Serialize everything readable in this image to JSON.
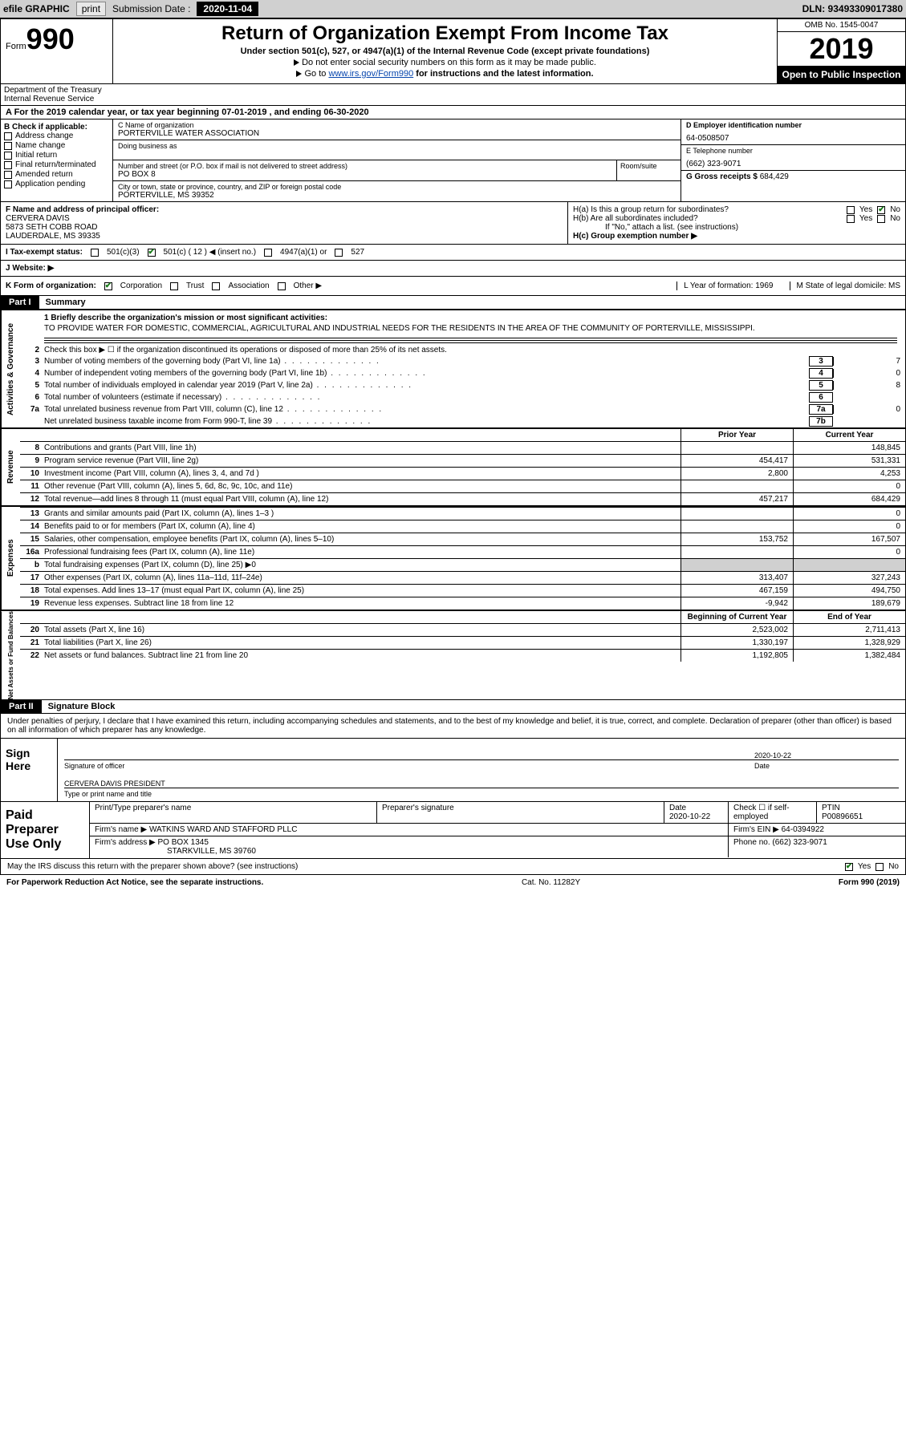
{
  "topbar": {
    "efile": "efile GRAPHIC",
    "print": "print",
    "sub_label": "Submission Date : ",
    "sub_date": "2020-11-04",
    "dln": "DLN: 93493309017380"
  },
  "header": {
    "form_word": "Form",
    "form_num": "990",
    "dept": "Department of the Treasury\nInternal Revenue Service",
    "title": "Return of Organization Exempt From Income Tax",
    "subtitle": "Under section 501(c), 527, or 4947(a)(1) of the Internal Revenue Code (except private foundations)",
    "line2": "Do not enter social security numbers on this form as it may be made public.",
    "line3_pre": "Go to ",
    "line3_link": "www.irs.gov/Form990",
    "line3_post": " for instructions and the latest information.",
    "omb": "OMB No. 1545-0047",
    "year": "2019",
    "open_public": "Open to Public Inspection"
  },
  "row_a": "A For the 2019 calendar year, or tax year beginning 07-01-2019    , and ending 06-30-2020",
  "col_b": {
    "label": "B Check if applicable:",
    "items": [
      "Address change",
      "Name change",
      "Initial return",
      "Final return/terminated",
      "Amended return",
      "Application pending"
    ]
  },
  "col_c": {
    "name_label": "C Name of organization",
    "name": "PORTERVILLE WATER ASSOCIATION",
    "dba_label": "Doing business as",
    "addr_label": "Number and street (or P.O. box if mail is not delivered to street address)",
    "addr": "PO BOX 8",
    "suite_label": "Room/suite",
    "city_label": "City or town, state or province, country, and ZIP or foreign postal code",
    "city": "PORTERVILLE, MS  39352"
  },
  "col_d": {
    "ein_label": "D Employer identification number",
    "ein": "64-0508507",
    "phone_label": "E Telephone number",
    "phone": "(662) 323-9071",
    "gross_label": "G Gross receipts $ ",
    "gross": "684,429"
  },
  "row_f": {
    "label": "F  Name and address of principal officer:",
    "name": "CERVERA DAVIS",
    "addr1": "5873 SETH COBB ROAD",
    "addr2": "LAUDERDALE, MS  39335"
  },
  "row_h": {
    "ha": "H(a)  Is this a group return for subordinates?",
    "hb": "H(b)  Are all subordinates included?",
    "hb_note": "If \"No,\" attach a list. (see instructions)",
    "hc": "H(c)  Group exemption number ▶"
  },
  "tax_exempt": {
    "label": "I  Tax-exempt status:",
    "opts": [
      "501(c)(3)",
      "501(c) ( 12 ) ◀ (insert no.)",
      "4947(a)(1) or",
      "527"
    ]
  },
  "j_label": "J  Website: ▶",
  "k": {
    "label": "K Form of organization:",
    "opts": [
      "Corporation",
      "Trust",
      "Association",
      "Other ▶"
    ],
    "l": "L Year of formation: 1969",
    "m": "M State of legal domicile: MS"
  },
  "part1": {
    "tag": "Part I",
    "title": "Summary",
    "line1_label": "1  Briefly describe the organization's mission or most significant activities:",
    "mission": "TO PROVIDE WATER FOR DOMESTIC, COMMERCIAL, AGRICULTURAL AND INDUSTRIAL NEEDS FOR THE RESIDENTS IN THE AREA OF THE COMMUNITY OF PORTERVILLE, MISSISSIPPI.",
    "line2": "Check this box ▶ ☐  if the organization discontinued its operations or disposed of more than 25% of its net assets.",
    "governance_label": "Activities & Governance",
    "revenue_label": "Revenue",
    "expenses_label": "Expenses",
    "netassets_label": "Net Assets or Fund Balances",
    "lines_num": [
      {
        "n": "3",
        "d": "Number of voting members of the governing body (Part VI, line 1a)",
        "box": "3",
        "v": "7"
      },
      {
        "n": "4",
        "d": "Number of independent voting members of the governing body (Part VI, line 1b)",
        "box": "4",
        "v": "0"
      },
      {
        "n": "5",
        "d": "Total number of individuals employed in calendar year 2019 (Part V, line 2a)",
        "box": "5",
        "v": "8"
      },
      {
        "n": "6",
        "d": "Total number of volunteers (estimate if necessary)",
        "box": "6",
        "v": ""
      },
      {
        "n": "7a",
        "d": "Total unrelated business revenue from Part VIII, column (C), line 12",
        "box": "7a",
        "v": "0"
      },
      {
        "n": "",
        "d": "Net unrelated business taxable income from Form 990-T, line 39",
        "box": "7b",
        "v": ""
      }
    ],
    "py_label": "Prior Year",
    "cy_label": "Current Year",
    "revenue_lines": [
      {
        "n": "8",
        "d": "Contributions and grants (Part VIII, line 1h)",
        "py": "",
        "cy": "148,845"
      },
      {
        "n": "9",
        "d": "Program service revenue (Part VIII, line 2g)",
        "py": "454,417",
        "cy": "531,331"
      },
      {
        "n": "10",
        "d": "Investment income (Part VIII, column (A), lines 3, 4, and 7d )",
        "py": "2,800",
        "cy": "4,253"
      },
      {
        "n": "11",
        "d": "Other revenue (Part VIII, column (A), lines 5, 6d, 8c, 9c, 10c, and 11e)",
        "py": "",
        "cy": "0"
      },
      {
        "n": "12",
        "d": "Total revenue—add lines 8 through 11 (must equal Part VIII, column (A), line 12)",
        "py": "457,217",
        "cy": "684,429"
      }
    ],
    "expense_lines": [
      {
        "n": "13",
        "d": "Grants and similar amounts paid (Part IX, column (A), lines 1–3 )",
        "py": "",
        "cy": "0"
      },
      {
        "n": "14",
        "d": "Benefits paid to or for members (Part IX, column (A), line 4)",
        "py": "",
        "cy": "0"
      },
      {
        "n": "15",
        "d": "Salaries, other compensation, employee benefits (Part IX, column (A), lines 5–10)",
        "py": "153,752",
        "cy": "167,507"
      },
      {
        "n": "16a",
        "d": "Professional fundraising fees (Part IX, column (A), line 11e)",
        "py": "",
        "cy": "0"
      },
      {
        "n": "b",
        "d": "Total fundraising expenses (Part IX, column (D), line 25) ▶0",
        "py": "grey",
        "cy": "grey"
      },
      {
        "n": "17",
        "d": "Other expenses (Part IX, column (A), lines 11a–11d, 11f–24e)",
        "py": "313,407",
        "cy": "327,243"
      },
      {
        "n": "18",
        "d": "Total expenses. Add lines 13–17 (must equal Part IX, column (A), line 25)",
        "py": "467,159",
        "cy": "494,750"
      },
      {
        "n": "19",
        "d": "Revenue less expenses. Subtract line 18 from line 12",
        "py": "-9,942",
        "cy": "189,679"
      }
    ],
    "boy_label": "Beginning of Current Year",
    "eoy_label": "End of Year",
    "asset_lines": [
      {
        "n": "20",
        "d": "Total assets (Part X, line 16)",
        "py": "2,523,002",
        "cy": "2,711,413"
      },
      {
        "n": "21",
        "d": "Total liabilities (Part X, line 26)",
        "py": "1,330,197",
        "cy": "1,328,929"
      },
      {
        "n": "22",
        "d": "Net assets or fund balances. Subtract line 21 from line 20",
        "py": "1,192,805",
        "cy": "1,382,484"
      }
    ]
  },
  "part2": {
    "tag": "Part II",
    "title": "Signature Block",
    "decl": "Under penalties of perjury, I declare that I have examined this return, including accompanying schedules and statements, and to the best of my knowledge and belief, it is true, correct, and complete. Declaration of preparer (other than officer) is based on all information of which preparer has any knowledge.",
    "sign_here": "Sign Here",
    "sig_officer": "Signature of officer",
    "sig_date": "2020-10-22",
    "date_label": "Date",
    "officer_name": "CERVERA DAVIS PRESIDENT",
    "type_name": "Type or print name and title",
    "paid_label": "Paid Preparer Use Only",
    "prep_name_label": "Print/Type preparer's name",
    "prep_sig_label": "Preparer's signature",
    "prep_date": "2020-10-22",
    "check_self": "Check ☐  if self-employed",
    "ptin_label": "PTIN",
    "ptin": "P00896651",
    "firm_name_label": "Firm's name    ▶",
    "firm_name": "WATKINS WARD AND STAFFORD PLLC",
    "firm_ein_label": "Firm's EIN ▶",
    "firm_ein": "64-0394922",
    "firm_addr_label": "Firm's address ▶",
    "firm_addr1": "PO BOX 1345",
    "firm_addr2": "STARKVILLE, MS  39760",
    "firm_phone_label": "Phone no.",
    "firm_phone": "(662) 323-9071",
    "discuss": "May the IRS discuss this return with the preparer shown above? (see instructions)"
  },
  "footer": {
    "left": "For Paperwork Reduction Act Notice, see the separate instructions.",
    "mid": "Cat. No. 11282Y",
    "right": "Form 990 (2019)"
  }
}
